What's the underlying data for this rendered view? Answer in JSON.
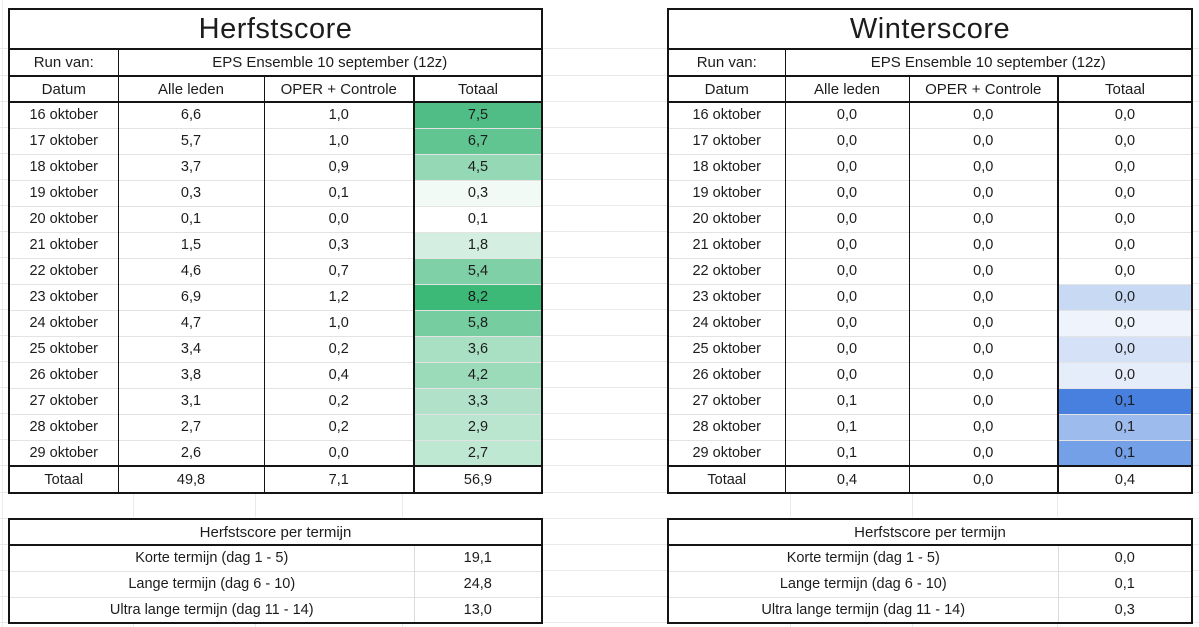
{
  "left_sheet": {
    "title": "Herfstscore",
    "run_label": "Run van:",
    "run_value": "EPS Ensemble 10 september (12z)",
    "columns": [
      "Datum",
      "Alle leden",
      "OPER + Controle",
      "Totaal"
    ],
    "accent_scale": {
      "type": "white-to-green",
      "max_color": "#3CB877"
    },
    "rows": [
      {
        "date": "16 oktober",
        "alle": "6,6",
        "oper": "1,0",
        "totaal": "7,5",
        "totaal_bg": "#4FBD85"
      },
      {
        "date": "17 oktober",
        "alle": "5,7",
        "oper": "1,0",
        "totaal": "6,7",
        "totaal_bg": "#60C591"
      },
      {
        "date": "18 oktober",
        "alle": "3,7",
        "oper": "0,9",
        "totaal": "4,5",
        "totaal_bg": "#94D8B5"
      },
      {
        "date": "19 oktober",
        "alle": "0,3",
        "oper": "0,1",
        "totaal": "0,3",
        "totaal_bg": "#F2FAF6"
      },
      {
        "date": "20 oktober",
        "alle": "0,1",
        "oper": "0,0",
        "totaal": "0,1",
        "totaal_bg": "#FEFFFE"
      },
      {
        "date": "21 oktober",
        "alle": "1,5",
        "oper": "0,3",
        "totaal": "1,8",
        "totaal_bg": "#D4EFE1"
      },
      {
        "date": "22 oktober",
        "alle": "4,6",
        "oper": "0,7",
        "totaal": "5,4",
        "totaal_bg": "#7FD0A6"
      },
      {
        "date": "23 oktober",
        "alle": "6,9",
        "oper": "1,2",
        "totaal": "8,2",
        "totaal_bg": "#3CB877"
      },
      {
        "date": "24 oktober",
        "alle": "4,7",
        "oper": "1,0",
        "totaal": "5,8",
        "totaal_bg": "#75CDA0"
      },
      {
        "date": "25 oktober",
        "alle": "3,4",
        "oper": "0,2",
        "totaal": "3,6",
        "totaal_bg": "#A9E0C4"
      },
      {
        "date": "26 oktober",
        "alle": "3,8",
        "oper": "0,4",
        "totaal": "4,2",
        "totaal_bg": "#9BDBBA"
      },
      {
        "date": "27 oktober",
        "alle": "3,1",
        "oper": "0,2",
        "totaal": "3,3",
        "totaal_bg": "#B1E2C9"
      },
      {
        "date": "28 oktober",
        "alle": "2,7",
        "oper": "0,2",
        "totaal": "2,9",
        "totaal_bg": "#BAE6CF"
      },
      {
        "date": "29 oktober",
        "alle": "2,6",
        "oper": "0,0",
        "totaal": "2,7",
        "totaal_bg": "#BFE8D3"
      }
    ],
    "total_row": {
      "label": "Totaal",
      "alle": "49,8",
      "oper": "7,1",
      "totaal": "56,9"
    },
    "term_table": {
      "title": "Herfstscore per termijn",
      "rows": [
        {
          "label": "Korte termijn (dag 1 - 5)",
          "value": "19,1"
        },
        {
          "label": "Lange termijn (dag 6 - 10)",
          "value": "24,8"
        },
        {
          "label": "Ultra lange termijn (dag 11 - 14)",
          "value": "13,0"
        }
      ]
    }
  },
  "right_sheet": {
    "title": "Winterscore",
    "run_label": "Run van:",
    "run_value": "EPS Ensemble 10 september (12z)",
    "columns": [
      "Datum",
      "Alle leden",
      "OPER + Controle",
      "Totaal"
    ],
    "accent_scale": {
      "type": "white-to-blue",
      "max_color": "#4880DF"
    },
    "rows": [
      {
        "date": "16 oktober",
        "alle": "0,0",
        "oper": "0,0",
        "totaal": "0,0",
        "totaal_bg": "#FFFFFF"
      },
      {
        "date": "17 oktober",
        "alle": "0,0",
        "oper": "0,0",
        "totaal": "0,0",
        "totaal_bg": "#FFFFFF"
      },
      {
        "date": "18 oktober",
        "alle": "0,0",
        "oper": "0,0",
        "totaal": "0,0",
        "totaal_bg": "#FFFFFF"
      },
      {
        "date": "19 oktober",
        "alle": "0,0",
        "oper": "0,0",
        "totaal": "0,0",
        "totaal_bg": "#FFFFFF"
      },
      {
        "date": "20 oktober",
        "alle": "0,0",
        "oper": "0,0",
        "totaal": "0,0",
        "totaal_bg": "#FFFFFF"
      },
      {
        "date": "21 oktober",
        "alle": "0,0",
        "oper": "0,0",
        "totaal": "0,0",
        "totaal_bg": "#FFFFFF"
      },
      {
        "date": "22 oktober",
        "alle": "0,0",
        "oper": "0,0",
        "totaal": "0,0",
        "totaal_bg": "#FFFFFF"
      },
      {
        "date": "23 oktober",
        "alle": "0,0",
        "oper": "0,0",
        "totaal": "0,0",
        "totaal_bg": "#C8D9F4"
      },
      {
        "date": "24 oktober",
        "alle": "0,0",
        "oper": "0,0",
        "totaal": "0,0",
        "totaal_bg": "#EEF3FC"
      },
      {
        "date": "25 oktober",
        "alle": "0,0",
        "oper": "0,0",
        "totaal": "0,0",
        "totaal_bg": "#D4E1F7"
      },
      {
        "date": "26 oktober",
        "alle": "0,0",
        "oper": "0,0",
        "totaal": "0,0",
        "totaal_bg": "#E6EDFA"
      },
      {
        "date": "27 oktober",
        "alle": "0,1",
        "oper": "0,0",
        "totaal": "0,1",
        "totaal_bg": "#4880DF"
      },
      {
        "date": "28 oktober",
        "alle": "0,1",
        "oper": "0,0",
        "totaal": "0,1",
        "totaal_bg": "#9DBBEC"
      },
      {
        "date": "29 oktober",
        "alle": "0,1",
        "oper": "0,0",
        "totaal": "0,1",
        "totaal_bg": "#74A0E8"
      }
    ],
    "total_row": {
      "label": "Totaal",
      "alle": "0,4",
      "oper": "0,0",
      "totaal": "0,4"
    },
    "term_table": {
      "title": "Herfstscore per termijn",
      "rows": [
        {
          "label": "Korte termijn (dag 1 - 5)",
          "value": "0,0"
        },
        {
          "label": "Lange termijn (dag 6 - 10)",
          "value": "0,1"
        },
        {
          "label": "Ultra lange termijn (dag 11 - 14)",
          "value": "0,3"
        }
      ]
    }
  }
}
